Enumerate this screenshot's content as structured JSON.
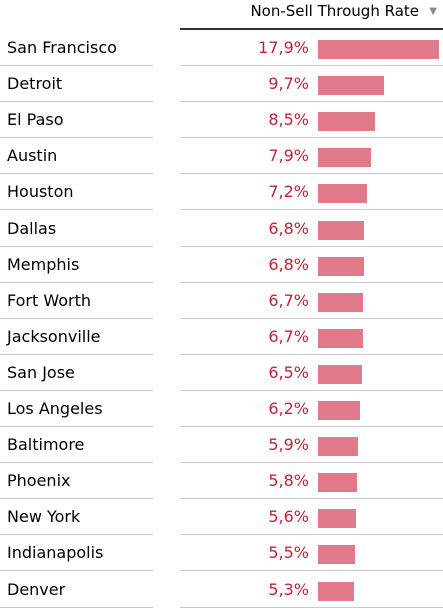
{
  "chart_data": {
    "type": "bar",
    "orientation": "horizontal",
    "column_header": "Non-Sell Through Rate",
    "sort_icon": "sort-descending-icon",
    "bar_color": "#e07a8a",
    "value_color": "#c0243a",
    "categories": [
      "San Francisco",
      "Detroit",
      "El Paso",
      "Austin",
      "Houston",
      "Dallas",
      "Memphis",
      "Fort Worth",
      "Jacksonville",
      "San Jose",
      "Los Angeles",
      "Baltimore",
      "Phoenix",
      "New York",
      "Indianapolis",
      "Denver"
    ],
    "values": [
      17.9,
      9.7,
      8.5,
      7.9,
      7.2,
      6.8,
      6.8,
      6.7,
      6.7,
      6.5,
      6.2,
      5.9,
      5.8,
      5.6,
      5.5,
      5.3
    ],
    "value_labels": [
      "17,9%",
      "9,7%",
      "8,5%",
      "7,9%",
      "7,2%",
      "6,8%",
      "6,8%",
      "6,7%",
      "6,7%",
      "6,5%",
      "6,2%",
      "5,9%",
      "5,8%",
      "5,6%",
      "5,5%",
      "5,3%"
    ],
    "xlim": [
      0,
      17.9
    ]
  }
}
